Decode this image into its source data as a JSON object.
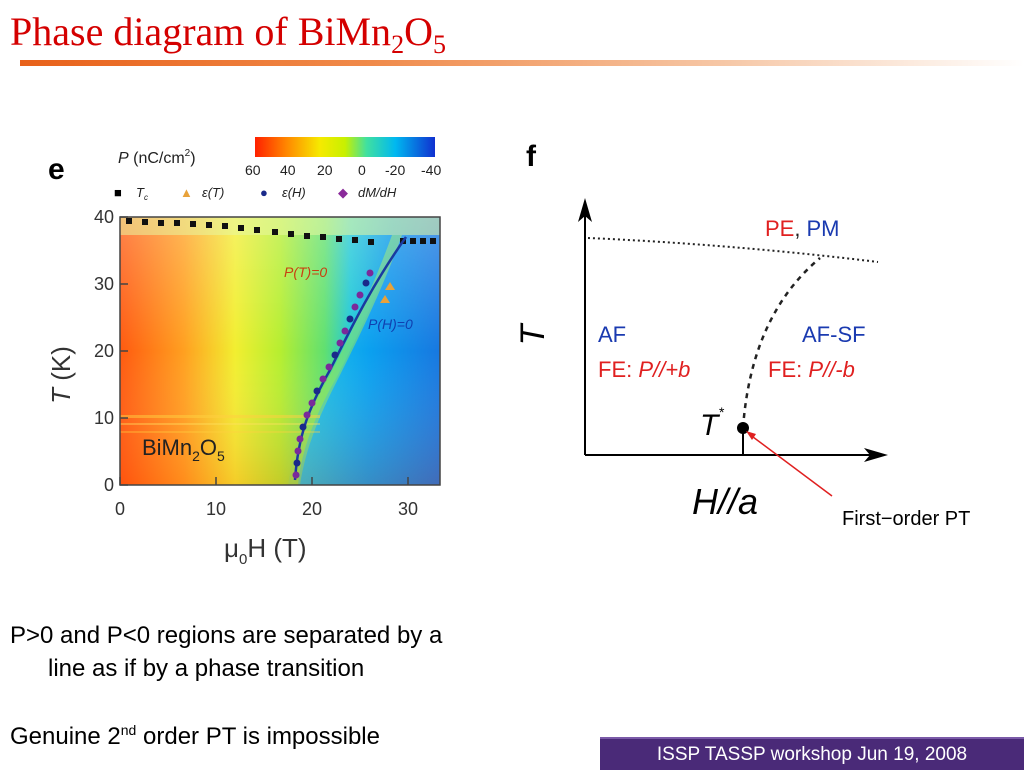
{
  "slide": {
    "title_main": "Phase diagram of BiMn",
    "title_sub1": "2",
    "title_mid": "O",
    "title_sub2": "5",
    "footer": "ISSP TASSP workshop  Jun 19, 2008"
  },
  "panel_e": {
    "letter": "e",
    "colorbar_label_P": "P",
    "colorbar_label_unit": " (nC/cm",
    "colorbar_label_sup": "2",
    "colorbar_label_close": ")",
    "colorbar_ticks": [
      "60",
      "40",
      "20",
      "0",
      "-20",
      "-40"
    ],
    "legend": [
      {
        "symbol": "■",
        "label": "T",
        "sub": "c",
        "color": "#000000"
      },
      {
        "symbol": "▲",
        "label": "ε(T)",
        "sub": "",
        "color": "#e8a23a"
      },
      {
        "symbol": "●",
        "label": "ε(H)",
        "sub": "",
        "color": "#1a2a8a"
      },
      {
        "symbol": "◆",
        "label": "dM/dH",
        "sub": "",
        "color": "#8a2a9a"
      }
    ],
    "y_axis_label": "T (K)",
    "y_ticks": [
      "40",
      "30",
      "20",
      "10",
      "0"
    ],
    "x_ticks": [
      "0",
      "10",
      "20",
      "30"
    ],
    "x_axis_label_mu": "μ",
    "x_axis_label_sub": "0",
    "x_axis_label_rest": "H (T)",
    "annotation_PT": "P(T)=0",
    "annotation_PH": "P(H)=0",
    "compound_main": "BiMn",
    "compound_sub1": "2",
    "compound_O": "O",
    "compound_sub2": "5"
  },
  "panel_f": {
    "letter": "f",
    "y_axis_label": "T",
    "x_axis_label": "H//a",
    "pe": "PE",
    "comma": ",",
    "pm": "PM",
    "af": "AF",
    "fe_left_prefix": "FE: ",
    "fe_left_value": "P//+b",
    "afsf": "AF-SF",
    "fe_right_prefix": "FE: ",
    "fe_right_value": "P//-b",
    "tstar": "T",
    "tstar_sup": "*",
    "first_order_label": "First−order PT"
  },
  "bullets": {
    "line1": "P>0 and P<0 regions are separated by a",
    "line2": "line as if by a phase transition",
    "line3_a": "Genuine 2",
    "line3_sup": "nd",
    "line3_b": " order PT is impossible"
  }
}
